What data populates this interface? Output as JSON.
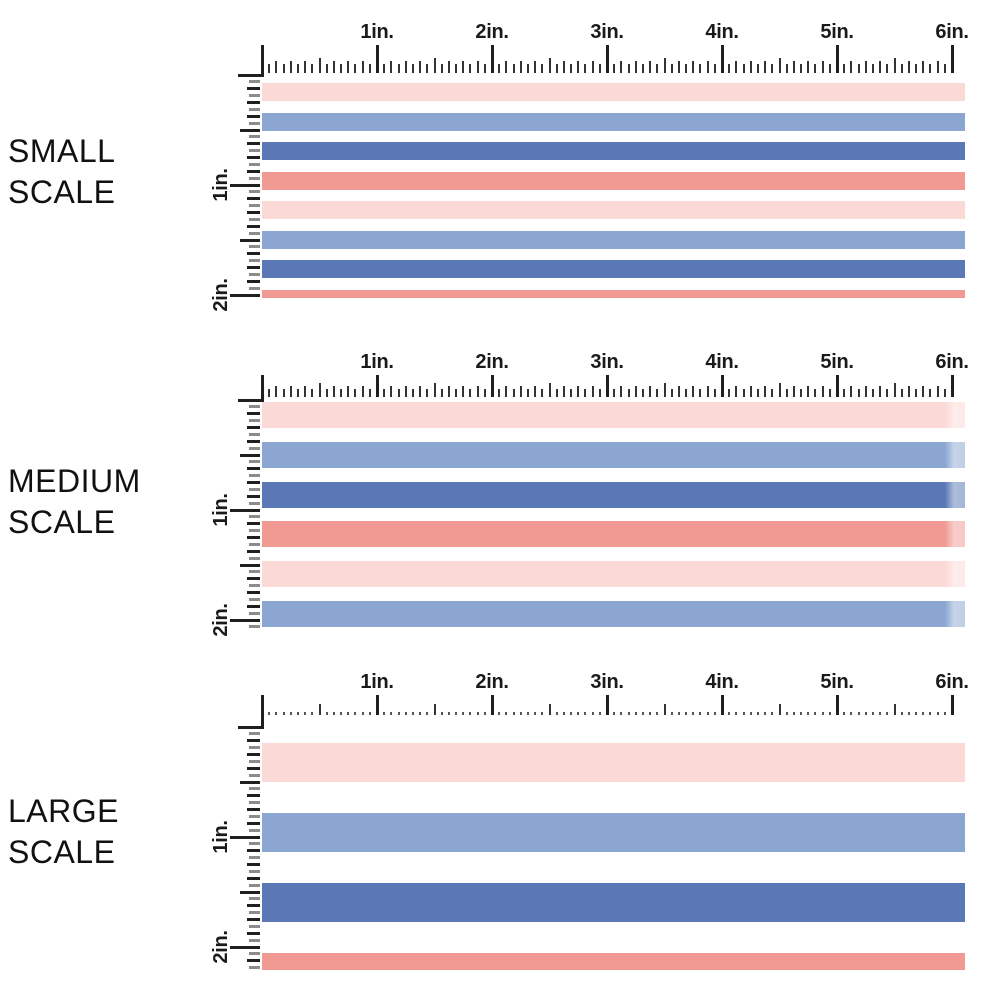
{
  "title_blocks": [
    {
      "id": "small",
      "line1": "SMALL",
      "line2": "SCALE"
    },
    {
      "id": "medium",
      "line1": "MEDIUM",
      "line2": "SCALE"
    },
    {
      "id": "large",
      "line1": "LARGE",
      "line2": "SCALE"
    }
  ],
  "ruler": {
    "horizontal_labels": [
      "1in.",
      "2in.",
      "3in.",
      "4in.",
      "5in.",
      "6in."
    ],
    "vertical_labels": [
      "1in.",
      "2in."
    ]
  },
  "colors": {
    "pale_pink": "#fbd9d6",
    "light_blue": "#8ba7d1",
    "dark_blue": "#5978b5",
    "coral": "#f09a93",
    "tick_dark": "#1f1f1f",
    "tick_mid": "#333333",
    "tick_gray": "#8c8c8c",
    "text": "#111111",
    "background": "#ffffff"
  },
  "panels": [
    {
      "name": "small-scale",
      "stripe_sequence": [
        "pale_pink",
        "light_blue",
        "dark_blue",
        "coral",
        "pale_pink",
        "light_blue",
        "dark_blue",
        "coral"
      ]
    },
    {
      "name": "medium-scale",
      "stripe_sequence": [
        "pale_pink",
        "light_blue",
        "dark_blue",
        "coral",
        "pale_pink",
        "light_blue"
      ]
    },
    {
      "name": "large-scale",
      "stripe_sequence": [
        "pale_pink",
        "light_blue",
        "dark_blue",
        "coral"
      ]
    }
  ]
}
